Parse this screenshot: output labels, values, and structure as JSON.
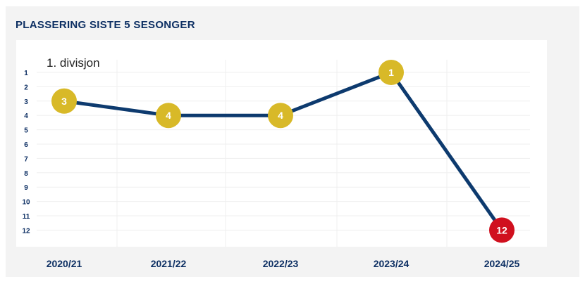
{
  "title": "PLASSERING SISTE 5 SESONGER",
  "division_label": "1. divisjon",
  "colors": {
    "line": "#0d3a6e",
    "marker_default": "#d8b928",
    "marker_highlight": "#d0101e",
    "axis_text": "#0d2f63"
  },
  "chart_data": {
    "type": "line",
    "title": "PLASSERING SISTE 5 SESONGER",
    "annotation": "1. divisjon",
    "categories": [
      "2020/21",
      "2021/22",
      "2022/23",
      "2023/24",
      "2024/25"
    ],
    "values": [
      3,
      4,
      4,
      1,
      12
    ],
    "point_labels": [
      "3",
      "4",
      "4",
      "1",
      "12"
    ],
    "highlighted_points": [
      4
    ],
    "y_ticks": [
      "1",
      "2",
      "3",
      "4",
      "5",
      "6",
      "7",
      "8",
      "9",
      "10",
      "11",
      "12"
    ],
    "y_axis_inverted": true,
    "ylim": [
      1,
      12
    ],
    "grid": true,
    "xlabel": "",
    "ylabel": ""
  }
}
